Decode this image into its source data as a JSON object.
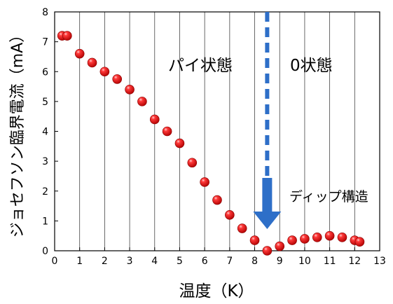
{
  "chart_data": {
    "type": "scatter",
    "title": "",
    "xlabel": "温度（K）",
    "ylabel": "ジョセフソン臨界電流（mA）",
    "xlim": [
      0,
      13
    ],
    "ylim": [
      0,
      8
    ],
    "xticks": [
      "0",
      "1",
      "2",
      "3",
      "4",
      "5",
      "6",
      "7",
      "8",
      "9",
      "10",
      "11",
      "12",
      "13"
    ],
    "yticks": [
      "0",
      "1",
      "2",
      "3",
      "4",
      "5",
      "6",
      "7",
      "8"
    ],
    "grid": "vertical",
    "marker_color": "#e01010",
    "series": [
      {
        "x": [
          0.3,
          0.5,
          1.0,
          1.5,
          2.0,
          2.5,
          3.0,
          3.5,
          4.0,
          4.5,
          5.0,
          5.5,
          6.0,
          6.5,
          7.0,
          7.5,
          8.0,
          8.5,
          9.0,
          9.5,
          10.0,
          10.5,
          11.0,
          11.5,
          12.0,
          12.2
        ],
        "y": [
          7.2,
          7.2,
          6.6,
          6.3,
          6.0,
          5.75,
          5.4,
          5.0,
          4.4,
          4.0,
          3.6,
          2.95,
          2.3,
          1.7,
          1.2,
          0.75,
          0.35,
          0.0,
          0.15,
          0.35,
          0.4,
          0.45,
          0.5,
          0.45,
          0.35,
          0.3
        ]
      }
    ],
    "annotations": {
      "pi_state": "パイ状態",
      "zero_state": "0状態",
      "dip": "ディップ構造"
    },
    "transition_x": 8.5,
    "arrow_color": "#2e6fc8"
  }
}
